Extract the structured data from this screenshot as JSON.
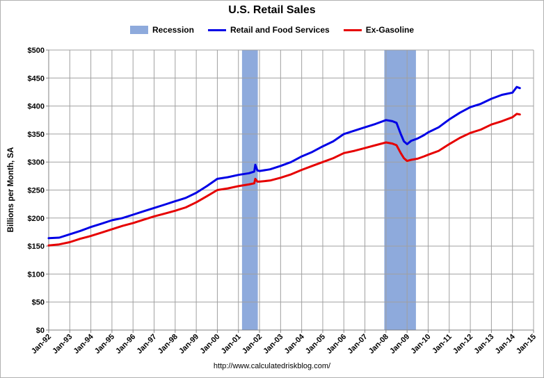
{
  "chart_data": {
    "type": "line",
    "title": "U.S. Retail Sales",
    "ylabel": "Billions per Month, SA",
    "xlabel": "",
    "source": "http://www.calculatedriskblog.com/",
    "ylim": [
      0,
      500
    ],
    "yticks": [
      "$0",
      "$50",
      "$100",
      "$150",
      "$200",
      "$250",
      "$300",
      "$350",
      "$400",
      "$450",
      "$500"
    ],
    "xlim": [
      1992.0,
      2015.0
    ],
    "xticks": [
      "Jan-92",
      "Jan-93",
      "Jan-94",
      "Jan-95",
      "Jan-96",
      "Jan-97",
      "Jan-98",
      "Jan-99",
      "Jan-00",
      "Jan-01",
      "Jan-02",
      "Jan-03",
      "Jan-04",
      "Jan-05",
      "Jan-06",
      "Jan-07",
      "Jan-08",
      "Jan-09",
      "Jan-10",
      "Jan-11",
      "Jan-12",
      "Jan-13",
      "Jan-14",
      "Jan-15"
    ],
    "grid": true,
    "legend_position": "top",
    "legend": [
      {
        "name": "Recession",
        "color": "#8eaadc",
        "kind": "area"
      },
      {
        "name": "Retail and Food Services",
        "color": "#0000e6",
        "kind": "line"
      },
      {
        "name": "Ex-Gasoline",
        "color": "#e60000",
        "kind": "line"
      }
    ],
    "recessions": [
      {
        "start": 2001.17,
        "end": 2001.92
      },
      {
        "start": 2007.92,
        "end": 2009.42
      }
    ],
    "series": [
      {
        "name": "Retail and Food Services",
        "color": "#0000e6",
        "x": [
          1992.0,
          1992.5,
          1993.0,
          1993.5,
          1994.0,
          1994.5,
          1995.0,
          1995.5,
          1996.0,
          1996.5,
          1997.0,
          1997.5,
          1998.0,
          1998.5,
          1999.0,
          1999.5,
          2000.0,
          2000.5,
          2001.0,
          2001.5,
          2001.75,
          2001.8,
          2001.9,
          2002.0,
          2002.5,
          2003.0,
          2003.5,
          2004.0,
          2004.5,
          2005.0,
          2005.5,
          2006.0,
          2006.5,
          2007.0,
          2007.5,
          2008.0,
          2008.3,
          2008.5,
          2008.7,
          2008.85,
          2009.0,
          2009.2,
          2009.5,
          2009.8,
          2010.0,
          2010.5,
          2011.0,
          2011.5,
          2012.0,
          2012.5,
          2013.0,
          2013.5,
          2014.0,
          2014.2,
          2014.35
        ],
        "values": [
          164,
          165,
          171,
          177,
          184,
          190,
          196,
          200,
          206,
          212,
          218,
          224,
          230,
          236,
          245,
          257,
          270,
          273,
          277,
          280,
          283,
          295,
          285,
          284,
          287,
          293,
          300,
          310,
          318,
          328,
          337,
          350,
          356,
          362,
          368,
          375,
          373,
          370,
          350,
          337,
          332,
          338,
          342,
          348,
          353,
          362,
          376,
          388,
          398,
          404,
          413,
          420,
          424,
          434,
          432
        ]
      },
      {
        "name": "Ex-Gasoline",
        "color": "#e60000",
        "x": [
          1992.0,
          1992.5,
          1993.0,
          1993.5,
          1994.0,
          1994.5,
          1995.0,
          1995.5,
          1996.0,
          1996.5,
          1997.0,
          1997.5,
          1998.0,
          1998.5,
          1999.0,
          1999.5,
          2000.0,
          2000.5,
          2001.0,
          2001.5,
          2001.75,
          2001.8,
          2001.9,
          2002.0,
          2002.5,
          2003.0,
          2003.5,
          2004.0,
          2004.5,
          2005.0,
          2005.5,
          2006.0,
          2006.5,
          2007.0,
          2007.5,
          2008.0,
          2008.3,
          2008.5,
          2008.7,
          2008.85,
          2009.0,
          2009.2,
          2009.5,
          2009.8,
          2010.0,
          2010.5,
          2011.0,
          2011.5,
          2012.0,
          2012.5,
          2013.0,
          2013.5,
          2014.0,
          2014.2,
          2014.35
        ],
        "values": [
          151,
          153,
          157,
          163,
          168,
          174,
          180,
          186,
          191,
          197,
          203,
          208,
          213,
          219,
          228,
          239,
          250,
          253,
          257,
          260,
          262,
          270,
          265,
          265,
          267,
          272,
          278,
          286,
          293,
          300,
          307,
          316,
          320,
          325,
          330,
          335,
          333,
          330,
          316,
          307,
          302,
          304,
          306,
          310,
          313,
          320,
          332,
          343,
          352,
          358,
          367,
          373,
          380,
          386,
          385
        ]
      }
    ]
  }
}
